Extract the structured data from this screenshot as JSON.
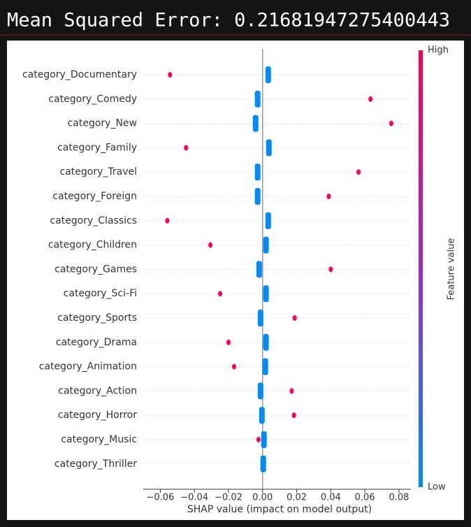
{
  "header": {
    "title": "Mean Squared Error: 0.21681947275400443"
  },
  "chart_data": {
    "type": "beeswarm",
    "xlabel": "SHAP value (impact on model output)",
    "colorbar_label": "Feature value",
    "categories": [
      "category_Documentary",
      "category_Comedy",
      "category_New",
      "category_Family",
      "category_Travel",
      "category_Foreign",
      "category_Classics",
      "category_Children",
      "category_Games",
      "category_Sci-Fi",
      "category_Sports",
      "category_Drama",
      "category_Animation",
      "category_Action",
      "category_Horror",
      "category_Music",
      "category_Thriller"
    ],
    "series": [
      {
        "name": "High",
        "color": "#ff0052",
        "values": [
          -0.0543,
          0.0633,
          0.0755,
          -0.0449,
          0.0563,
          0.0388,
          -0.0559,
          -0.0306,
          0.04,
          -0.0249,
          0.0188,
          -0.02,
          -0.0167,
          0.0171,
          0.0184,
          -0.0024,
          null
        ]
      },
      {
        "name": "Low",
        "color": "#008bfb",
        "values": [
          0.0033,
          -0.0029,
          -0.0041,
          0.0037,
          -0.0029,
          -0.0029,
          0.0033,
          0.002,
          -0.002,
          0.002,
          -0.0012,
          0.002,
          0.0016,
          -0.0012,
          -0.0004,
          0.0008,
          0.0004
        ]
      }
    ],
    "xlim": [
      -0.07,
      0.087
    ],
    "xticks": [
      {
        "value": -0.06,
        "label": "−0.06"
      },
      {
        "value": -0.04,
        "label": "−0.04"
      },
      {
        "value": -0.02,
        "label": "−0.02"
      },
      {
        "value": 0,
        "label": "0.00"
      },
      0.02,
      0.04,
      0.06,
      0.08
    ]
  }
}
